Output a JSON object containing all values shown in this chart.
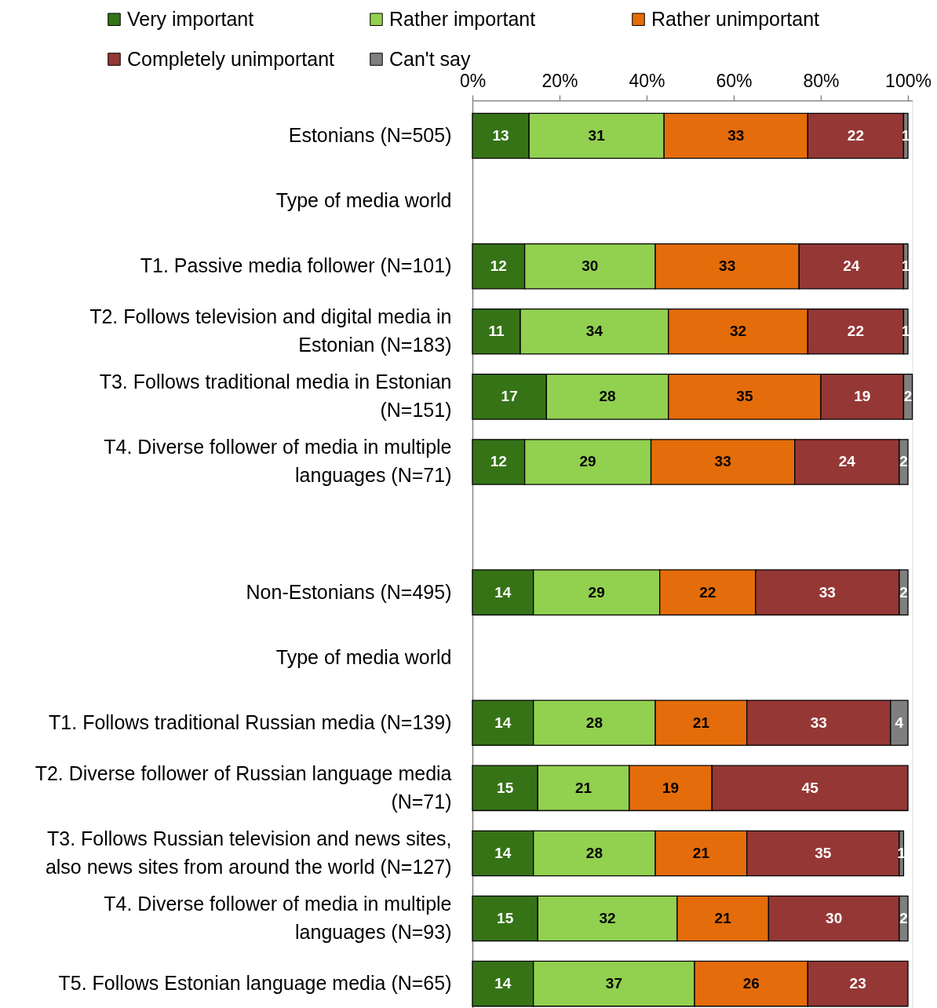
{
  "chart_data": {
    "type": "bar",
    "orientation": "horizontal",
    "stacked": true,
    "data_labels": true,
    "legend": "top",
    "categories": [
      "Estonians (N=505)",
      "Type of media world",
      "T1. Passive media follower (N=101)",
      "T2. Follows television and digital media in\nEstonian (N=183)",
      "T3. Follows traditional media in Estonian\n(N=151)",
      "T4. Diverse follower of media in multiple\nlanguages (N=71)",
      null,
      "Non-Estonians (N=495)",
      "Type of media world",
      "T1. Follows traditional Russian media (N=139)",
      "T2. Diverse follower of Russian language media\n(N=71)",
      "T3. Follows Russian television and news sites,\nalso news sites from around the world (N=127)",
      "T4. Diverse follower of media in multiple\nlanguages  (N=93)",
      "T5. Follows Estonian language media (N=65)"
    ],
    "series": [
      {
        "name": "Very important",
        "color": "#367317",
        "values": [
          13,
          null,
          12,
          11,
          17,
          12,
          null,
          14,
          null,
          14,
          15,
          14,
          15,
          14
        ]
      },
      {
        "name": "Rather important",
        "color": "#92d050",
        "values": [
          31,
          null,
          30,
          34,
          28,
          29,
          null,
          29,
          null,
          28,
          21,
          28,
          32,
          37
        ]
      },
      {
        "name": "Rather unimportant",
        "color": "#e46c0a",
        "values": [
          33,
          null,
          33,
          32,
          35,
          33,
          null,
          22,
          null,
          21,
          19,
          21,
          21,
          26
        ]
      },
      {
        "name": "Completely unimportant",
        "color": "#953735",
        "values": [
          22,
          null,
          24,
          22,
          19,
          24,
          null,
          33,
          null,
          33,
          45,
          35,
          30,
          23
        ]
      },
      {
        "name": "Can't say",
        "color": "#7f7f7f",
        "values": [
          1,
          null,
          1,
          1,
          2,
          2,
          null,
          2,
          null,
          4,
          null,
          1,
          2,
          null
        ]
      }
    ],
    "xlim": [
      0,
      101
    ],
    "xticks": [
      {
        "value": 0,
        "label": "0%"
      },
      {
        "value": 20,
        "label": "20%"
      },
      {
        "value": 40,
        "label": "40%"
      },
      {
        "value": 60,
        "label": "60%"
      },
      {
        "value": 80,
        "label": "80%"
      },
      {
        "value": 100,
        "label": "100%"
      }
    ]
  }
}
